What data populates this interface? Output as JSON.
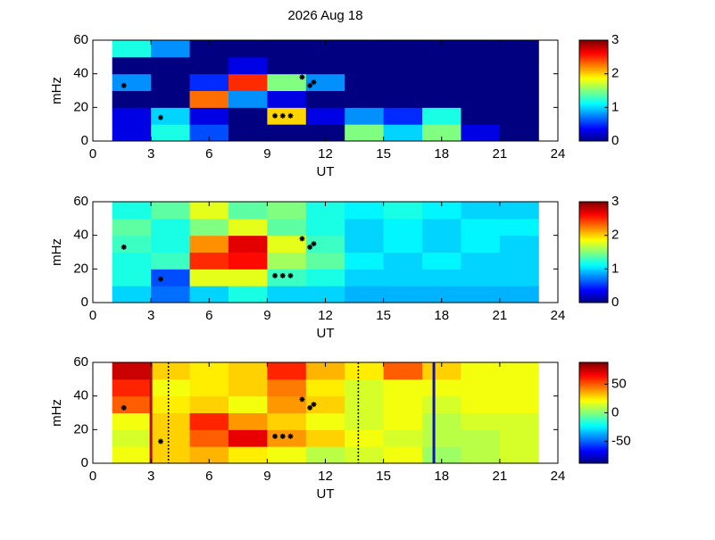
{
  "chart_data": [
    {
      "type": "heatmap",
      "title": "2026 Aug 18",
      "xlabel": "UT",
      "ylabel": "mHz",
      "colormap": "jet",
      "xlim": [
        0,
        24
      ],
      "xticks": [
        0,
        3,
        6,
        9,
        12,
        15,
        18,
        21,
        24
      ],
      "ylim": [
        0,
        60
      ],
      "yticks": [
        0,
        20,
        40,
        60
      ],
      "x_edges": [
        1,
        3,
        5,
        7,
        9,
        11,
        13,
        15,
        17,
        19,
        21,
        23
      ],
      "y_edges": [
        0,
        10,
        20,
        30,
        40,
        50,
        60
      ],
      "z": [
        [
          0.3,
          1.2,
          0.6,
          0,
          0,
          0,
          1.5,
          1.0,
          1.5,
          0.3,
          0
        ],
        [
          0.3,
          1.0,
          0.3,
          0,
          2.0,
          0.3,
          0.8,
          0.5,
          1.2,
          0,
          0
        ],
        [
          0,
          0,
          2.3,
          0.8,
          0.3,
          0,
          0,
          0,
          0,
          0,
          0
        ],
        [
          0.8,
          0,
          0.5,
          2.5,
          1.5,
          0.8,
          0,
          0,
          0,
          0,
          0
        ],
        [
          0,
          0,
          0,
          0.3,
          0,
          0,
          0,
          0,
          0,
          0,
          0
        ],
        [
          1.2,
          0.8,
          0,
          0,
          0,
          0,
          0,
          0,
          0,
          0,
          0
        ]
      ],
      "clim": [
        0,
        3
      ],
      "cticks": [
        0,
        1,
        2,
        3
      ],
      "markers": {
        "color": "#000000",
        "x": [
          1.6,
          3.5,
          9.4,
          9.8,
          10.2,
          10.8,
          11.2,
          11.4
        ],
        "y": [
          33,
          14,
          15,
          15,
          15,
          38,
          33,
          35
        ]
      }
    },
    {
      "type": "heatmap",
      "xlabel": "UT",
      "ylabel": "mHz",
      "colormap": "jet",
      "xlim": [
        0,
        24
      ],
      "xticks": [
        0,
        3,
        6,
        9,
        12,
        15,
        18,
        21,
        24
      ],
      "ylim": [
        0,
        60
      ],
      "yticks": [
        0,
        20,
        40,
        60
      ],
      "x_edges": [
        1,
        3,
        5,
        7,
        9,
        11,
        13,
        15,
        17,
        19,
        21,
        23
      ],
      "y_edges": [
        0,
        10,
        20,
        30,
        40,
        50,
        60
      ],
      "z": [
        [
          1.0,
          0.7,
          1.0,
          1.2,
          1.0,
          1.0,
          0.9,
          0.9,
          0.9,
          0.9,
          0.9
        ],
        [
          1.2,
          0.6,
          1.8,
          1.8,
          1.3,
          1.2,
          1.0,
          1.0,
          1.0,
          1.0,
          1.0
        ],
        [
          1.2,
          1.3,
          2.5,
          2.6,
          1.6,
          1.4,
          1.1,
          1.0,
          1.1,
          1.0,
          1.0
        ],
        [
          1.3,
          1.2,
          2.2,
          2.7,
          1.8,
          1.3,
          1.0,
          1.1,
          1.0,
          1.1,
          1.0
        ],
        [
          1.4,
          1.2,
          1.5,
          1.8,
          1.4,
          1.2,
          1.0,
          1.1,
          1.0,
          1.1,
          1.1
        ],
        [
          1.2,
          1.4,
          1.8,
          1.4,
          1.5,
          1.2,
          1.1,
          1.2,
          1.1,
          1.0,
          1.0
        ]
      ],
      "clim": [
        0,
        3
      ],
      "cticks": [
        0,
        1,
        2,
        3
      ],
      "markers": {
        "color": "#000000",
        "x": [
          1.6,
          3.5,
          9.4,
          9.8,
          10.2,
          10.8,
          11.2,
          11.4
        ],
        "y": [
          33,
          14,
          16,
          16,
          16,
          38,
          33,
          35
        ]
      }
    },
    {
      "type": "heatmap",
      "xlabel": "UT",
      "ylabel": "mHz",
      "colormap": "jet",
      "xlim": [
        0,
        24
      ],
      "xticks": [
        0,
        3,
        6,
        9,
        12,
        15,
        18,
        21,
        24
      ],
      "ylim": [
        0,
        60
      ],
      "yticks": [
        0,
        20,
        40,
        60
      ],
      "x_edges": [
        1,
        3,
        5,
        7,
        9,
        11,
        13,
        15,
        17,
        19,
        21,
        23
      ],
      "y_edges": [
        0,
        10,
        20,
        30,
        40,
        50,
        60
      ],
      "z": [
        [
          20,
          30,
          35,
          25,
          20,
          10,
          15,
          20,
          5,
          10,
          15
        ],
        [
          15,
          30,
          50,
          70,
          40,
          30,
          20,
          15,
          10,
          10,
          15
        ],
        [
          20,
          30,
          60,
          40,
          30,
          20,
          15,
          20,
          10,
          15,
          15
        ],
        [
          50,
          25,
          30,
          20,
          40,
          30,
          15,
          20,
          15,
          20,
          20
        ],
        [
          60,
          20,
          25,
          30,
          45,
          25,
          15,
          20,
          20,
          20,
          20
        ],
        [
          75,
          30,
          25,
          30,
          60,
          35,
          25,
          50,
          30,
          20,
          20
        ]
      ],
      "clim": [
        -88,
        88
      ],
      "cticks": [
        -50,
        0,
        50
      ],
      "markers": {
        "color": "#000000",
        "x": [
          1.6,
          3.5,
          9.4,
          9.8,
          10.2,
          10.8,
          11.2,
          11.4
        ],
        "y": [
          33,
          13,
          16,
          16,
          16,
          38,
          33,
          35
        ]
      },
      "vlines": [
        {
          "x": 3,
          "color": "#b01010",
          "style": "solid"
        },
        {
          "x": 3.9,
          "color": "#000000",
          "style": "dotted"
        },
        {
          "x": 13.7,
          "color": "#000000",
          "style": "dotted"
        },
        {
          "x": 17.6,
          "color": "#1010c0",
          "style": "solid"
        }
      ]
    }
  ]
}
